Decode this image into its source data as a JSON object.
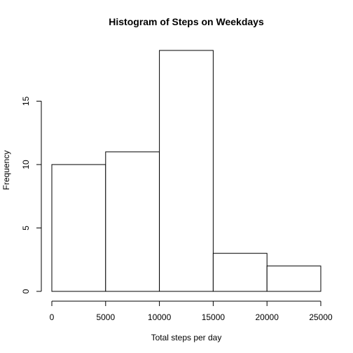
{
  "chart_data": {
    "type": "histogram",
    "title": "Histogram of Steps on Weekdays",
    "xlabel": "Total steps per day",
    "ylabel": "Frequency",
    "bins": [
      {
        "start": 0,
        "end": 5000,
        "count": 10
      },
      {
        "start": 5000,
        "end": 10000,
        "count": 11
      },
      {
        "start": 10000,
        "end": 15000,
        "count": 19
      },
      {
        "start": 15000,
        "end": 20000,
        "count": 3
      },
      {
        "start": 20000,
        "end": 25000,
        "count": 2
      }
    ],
    "xlim": [
      0,
      25000
    ],
    "ylim": [
      0,
      19
    ],
    "x_ticks": [
      0,
      5000,
      10000,
      15000,
      20000,
      25000
    ],
    "x_tick_labels": [
      "0",
      "5000",
      "10000",
      "15000",
      "20000",
      "25000"
    ],
    "y_ticks": [
      0,
      5,
      10,
      15
    ],
    "y_tick_labels": [
      "0",
      "5",
      "10",
      "15"
    ],
    "grid": false,
    "legend": "none"
  }
}
